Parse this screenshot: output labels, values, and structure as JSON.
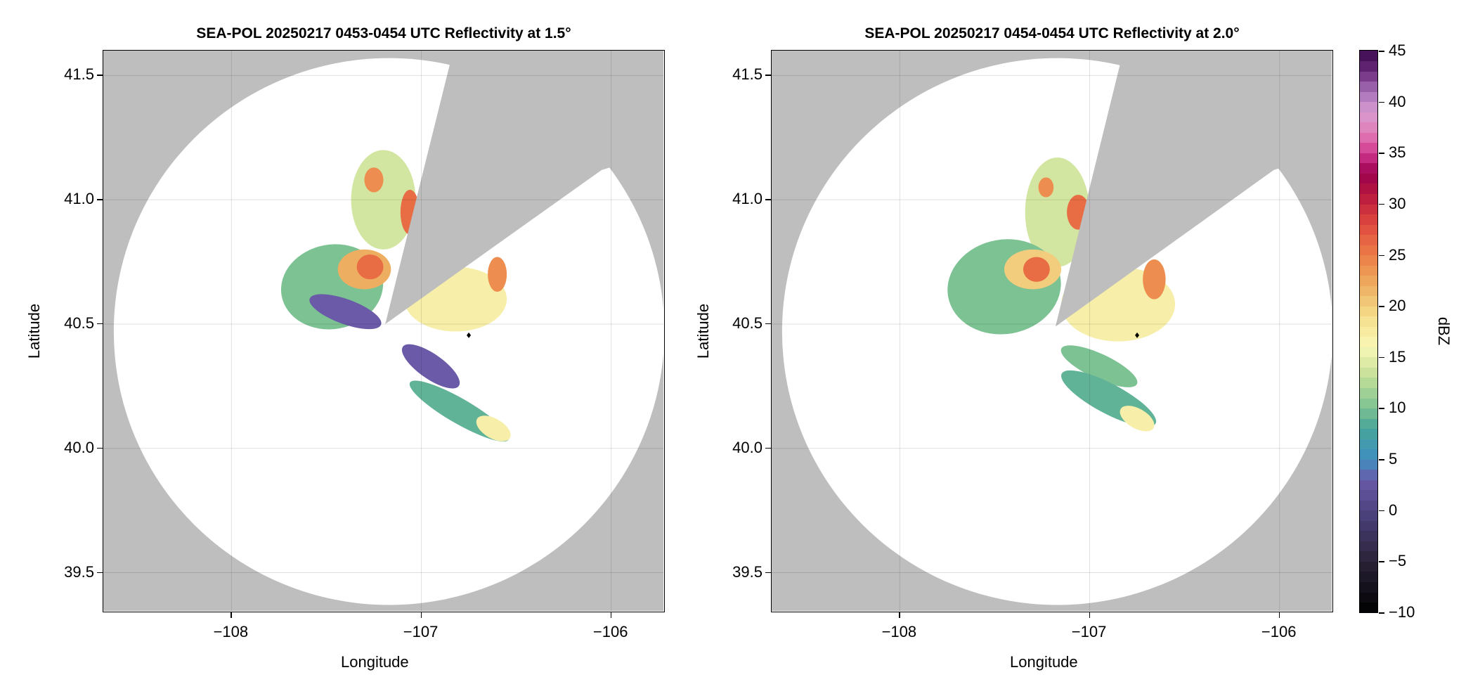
{
  "chart_data": [
    {
      "type": "heatmap",
      "title": "SEA-POL 20250217 0453-0454 UTC Reflectivity at 1.5°",
      "xlabel": "Longitude",
      "ylabel": "Latitude",
      "xlim": [
        -108.675,
        -105.725
      ],
      "ylim": [
        39.346,
        41.6
      ],
      "xticks": [
        -108,
        -107,
        -106
      ],
      "xtick_labels": [
        "−108",
        "−107",
        "−106"
      ],
      "yticks": [
        39.5,
        40.0,
        40.5,
        41.0,
        41.5
      ],
      "ytick_labels": [
        "39.5",
        "40.0",
        "40.5",
        "41.0",
        "41.5"
      ],
      "grid": true,
      "radar_center": [
        -107.17,
        40.47
      ],
      "range_ellipse_deg": [
        1.45,
        1.1
      ],
      "blocked_sector": [
        [
          -107.19,
          40.5
        ],
        [
          -106.85,
          41.545
        ],
        [
          -106.85,
          41.7
        ],
        [
          -105.7,
          41.7
        ],
        [
          -105.7,
          41.2
        ],
        [
          -106.05,
          41.12
        ]
      ],
      "marker": [
        -106.75,
        40.455
      ],
      "echo_regions": [
        {
          "lon": -107.2,
          "lat": 41.0,
          "rlon": 0.17,
          "rlat": 0.2,
          "rot": 0,
          "dbz": 14
        },
        {
          "lon": -107.47,
          "lat": 40.65,
          "rlon": 0.27,
          "rlat": 0.17,
          "rot": -10,
          "dbz": 10
        },
        {
          "lon": -107.3,
          "lat": 40.72,
          "rlon": 0.14,
          "rlat": 0.08,
          "rot": 0,
          "dbz": 22
        },
        {
          "lon": -107.27,
          "lat": 40.73,
          "rlon": 0.07,
          "rlat": 0.05,
          "rot": 0,
          "dbz": 26
        },
        {
          "lon": -107.25,
          "lat": 41.08,
          "rlon": 0.05,
          "rlat": 0.05,
          "rot": 0,
          "dbz": 24
        },
        {
          "lon": -107.06,
          "lat": 40.95,
          "rlon": 0.05,
          "rlat": 0.09,
          "rot": 0,
          "dbz": 26
        },
        {
          "lon": -107.4,
          "lat": 40.55,
          "rlon": 0.2,
          "rlat": 0.05,
          "rot": 20,
          "dbz": 3
        },
        {
          "lon": -106.82,
          "lat": 40.6,
          "rlon": 0.27,
          "rlat": 0.13,
          "rot": 0,
          "dbz": 17
        },
        {
          "lon": -106.6,
          "lat": 40.7,
          "rlon": 0.05,
          "rlat": 0.07,
          "rot": 0,
          "dbz": 24
        },
        {
          "lon": -106.95,
          "lat": 40.33,
          "rlon": 0.18,
          "rlat": 0.05,
          "rot": 35,
          "dbz": 3
        },
        {
          "lon": -106.8,
          "lat": 40.15,
          "rlon": 0.3,
          "rlat": 0.05,
          "rot": 30,
          "dbz": 9
        },
        {
          "lon": -106.62,
          "lat": 40.08,
          "rlon": 0.1,
          "rlat": 0.04,
          "rot": 30,
          "dbz": 17
        }
      ]
    },
    {
      "type": "heatmap",
      "title": "SEA-POL 20250217 0454-0454 UTC Reflectivity at 2.0°",
      "xlabel": "Longitude",
      "ylabel": "Latitude",
      "xlim": [
        -108.675,
        -105.725
      ],
      "ylim": [
        39.346,
        41.6
      ],
      "xticks": [
        -108,
        -107,
        -106
      ],
      "xtick_labels": [
        "−108",
        "−107",
        "−106"
      ],
      "yticks": [
        39.5,
        40.0,
        40.5,
        41.0,
        41.5
      ],
      "ytick_labels": [
        "39.5",
        "40.0",
        "40.5",
        "41.0",
        "41.5"
      ],
      "grid": true,
      "radar_center": [
        -107.17,
        40.47
      ],
      "range_ellipse_deg": [
        1.45,
        1.1
      ],
      "blocked_sector": [
        [
          -107.18,
          40.49
        ],
        [
          -106.84,
          41.545
        ],
        [
          -106.84,
          41.7
        ],
        [
          -105.7,
          41.7
        ],
        [
          -105.7,
          41.2
        ],
        [
          -106.03,
          41.12
        ]
      ],
      "marker": [
        -106.75,
        40.455
      ],
      "echo_regions": [
        {
          "lon": -107.17,
          "lat": 40.95,
          "rlon": 0.17,
          "rlat": 0.22,
          "rot": 0,
          "dbz": 14
        },
        {
          "lon": -107.45,
          "lat": 40.65,
          "rlon": 0.3,
          "rlat": 0.19,
          "rot": -10,
          "dbz": 10
        },
        {
          "lon": -107.3,
          "lat": 40.72,
          "rlon": 0.15,
          "rlat": 0.08,
          "rot": 0,
          "dbz": 20
        },
        {
          "lon": -107.28,
          "lat": 40.72,
          "rlon": 0.07,
          "rlat": 0.05,
          "rot": 0,
          "dbz": 26
        },
        {
          "lon": -107.06,
          "lat": 40.95,
          "rlon": 0.06,
          "rlat": 0.07,
          "rot": 0,
          "dbz": 26
        },
        {
          "lon": -107.23,
          "lat": 41.05,
          "rlon": 0.04,
          "rlat": 0.04,
          "rot": 0,
          "dbz": 24
        },
        {
          "lon": -106.85,
          "lat": 40.58,
          "rlon": 0.3,
          "rlat": 0.15,
          "rot": 0,
          "dbz": 17
        },
        {
          "lon": -106.66,
          "lat": 40.68,
          "rlon": 0.06,
          "rlat": 0.08,
          "rot": 0,
          "dbz": 24
        },
        {
          "lon": -106.95,
          "lat": 40.33,
          "rlon": 0.22,
          "rlat": 0.05,
          "rot": 25,
          "dbz": 10
        },
        {
          "lon": -106.9,
          "lat": 40.2,
          "rlon": 0.28,
          "rlat": 0.06,
          "rot": 28,
          "dbz": 9
        },
        {
          "lon": -106.75,
          "lat": 40.12,
          "rlon": 0.1,
          "rlat": 0.04,
          "rot": 30,
          "dbz": 17
        }
      ]
    }
  ],
  "colorbar": {
    "label": "dBZ",
    "min": -10,
    "max": 45,
    "ticks": [
      -10,
      -5,
      0,
      5,
      10,
      15,
      20,
      25,
      30,
      35,
      40,
      45
    ],
    "tick_labels": [
      "−10",
      "−5",
      "0",
      "5",
      "10",
      "15",
      "20",
      "25",
      "30",
      "35",
      "40",
      "45"
    ],
    "colors": [
      [
        -10,
        "#000000"
      ],
      [
        -5,
        "#2a2238"
      ],
      [
        0,
        "#4e4381"
      ],
      [
        3,
        "#6a5aa8"
      ],
      [
        5,
        "#3f8fc0"
      ],
      [
        8,
        "#46a39a"
      ],
      [
        10,
        "#7cc293"
      ],
      [
        13,
        "#c0dd96"
      ],
      [
        16,
        "#f9f8b8"
      ],
      [
        19,
        "#f4dd8a"
      ],
      [
        22,
        "#eeae62"
      ],
      [
        25,
        "#ec7d46"
      ],
      [
        28,
        "#e0493f"
      ],
      [
        31,
        "#b7163f"
      ],
      [
        33,
        "#9b004f"
      ],
      [
        35,
        "#d1388f"
      ],
      [
        37,
        "#e17eb8"
      ],
      [
        39,
        "#d89bd0"
      ],
      [
        41,
        "#a672b8"
      ],
      [
        43,
        "#6b2a7c"
      ],
      [
        45,
        "#3b0a4d"
      ]
    ]
  },
  "colors": {
    "background": "#bebebe",
    "coverage": "#ffffff",
    "grid": "#d0d0d0"
  }
}
